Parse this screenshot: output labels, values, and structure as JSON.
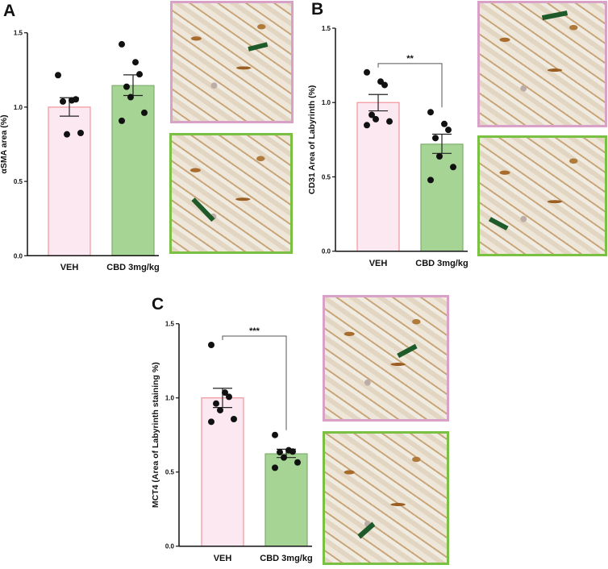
{
  "colors": {
    "veh_fill": "#fbe8f0",
    "veh_edge": "#f0959c",
    "cbd_fill": "#a5d494",
    "cbd_edge": "#7fae6f",
    "veh_frame": "#d9a0c8",
    "cbd_frame": "#7ac143",
    "arrow": "#1f5a2a",
    "point": "#111111"
  },
  "panels": {
    "a": "A",
    "b": "B",
    "c": "C"
  },
  "chart_data": [
    {
      "type": "bar",
      "panel": "A",
      "ylabel": "αSMA area (%)",
      "ylim": [
        0,
        1.5
      ],
      "yticks": [
        "0.0",
        "0.5",
        "1.0",
        "1.5"
      ],
      "categories": [
        "VEH",
        "CBD 3mg/kg"
      ],
      "values": [
        1.0,
        1.145
      ],
      "sem": [
        [
          0.939,
          1.063
        ],
        [
          1.078,
          1.217
        ]
      ],
      "points": [
        [
          1.215,
          1.045,
          1.052,
          1.038,
          0.817,
          0.826
        ],
        [
          1.423,
          1.302,
          1.221,
          1.137,
          1.067,
          0.962,
          0.908
        ]
      ],
      "significance": ""
    },
    {
      "type": "bar",
      "panel": "B",
      "ylabel": "CD31 Area of Labyrinth (%)",
      "ylim": [
        0,
        1.5
      ],
      "yticks": [
        "0.0",
        "0.5",
        "1.0",
        "1.5"
      ],
      "categories": [
        "VEH",
        "CBD 3mg/kg"
      ],
      "values": [
        1.0,
        0.72
      ],
      "sem": [
        [
          0.944,
          1.054
        ],
        [
          0.658,
          0.787
        ]
      ],
      "points": [
        [
          1.203,
          1.141,
          1.118,
          0.917,
          0.888,
          0.873,
          0.848
        ],
        [
          0.935,
          0.856,
          0.816,
          0.761,
          0.638,
          0.566,
          0.479
        ]
      ],
      "significance": "**",
      "bracket_y": 1.262
    },
    {
      "type": "bar",
      "panel": "C",
      "ylabel": "MCT4 (Area of Labyrinth staining %)",
      "ylim": [
        0,
        1.5
      ],
      "yticks": [
        "0.0",
        "0.5",
        "1.0",
        "1.5"
      ],
      "categories": [
        "VEH",
        "CBD 3mg/kg"
      ],
      "values": [
        1.0,
        0.623
      ],
      "sem": [
        [
          0.935,
          1.065
        ],
        [
          0.598,
          0.654
        ]
      ],
      "points": [
        [
          1.357,
          1.036,
          1.007,
          0.962,
          0.917,
          0.857,
          0.839
        ],
        [
          0.75,
          0.647,
          0.638,
          0.634,
          0.598,
          0.565,
          0.529
        ]
      ],
      "significance": "***",
      "bracket_y": 1.417
    }
  ]
}
